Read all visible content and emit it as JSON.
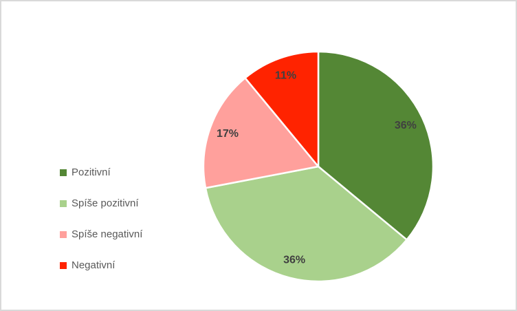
{
  "frame": {
    "background_color": "#FFFFFF",
    "border_color": "#D9D9D9"
  },
  "chart_data": {
    "type": "pie",
    "title": "",
    "categories": [
      "Pozitivní",
      "Spíše pozitivní",
      "Spíše negativní",
      "Negativní"
    ],
    "values": [
      36,
      36,
      17,
      11
    ],
    "data_labels": [
      "36%",
      "36%",
      "17%",
      "11%"
    ],
    "colors": [
      "#548735",
      "#A9D18C",
      "#FFA09C",
      "#FF2300"
    ],
    "start_angle_deg": 0,
    "direction": "clockwise",
    "legend_position": "left",
    "slice_separator_color": "#FFFFFF",
    "data_label_color": "#404040",
    "legend_text_color": "#595959"
  }
}
